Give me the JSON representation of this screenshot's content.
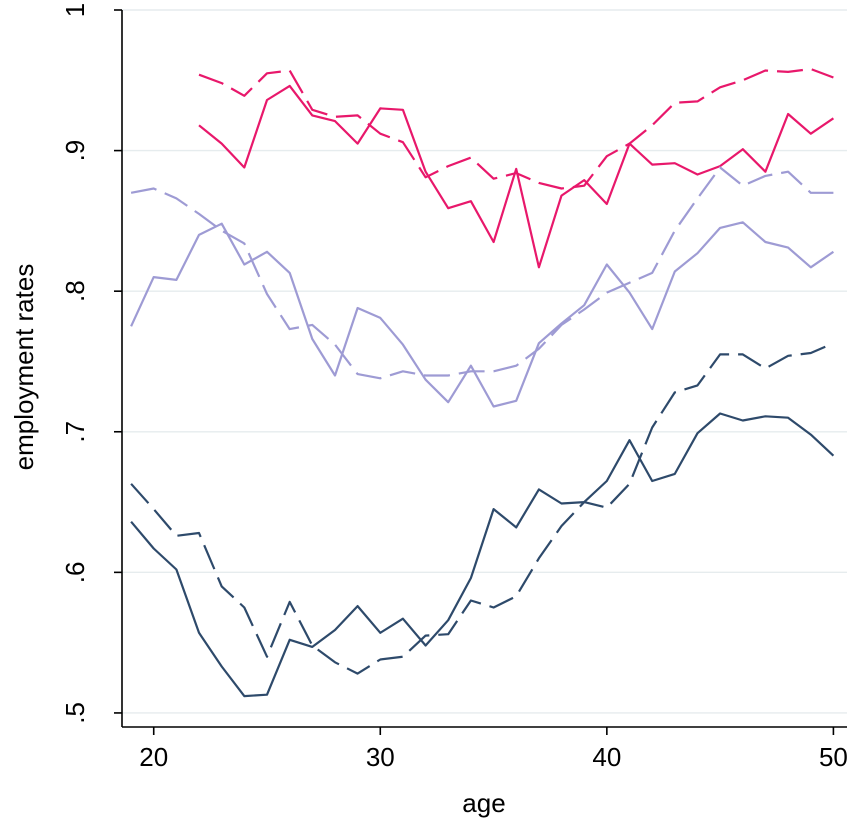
{
  "chart_data": {
    "type": "line",
    "xlabel": "age",
    "ylabel": "employment rates",
    "xlim": [
      18.6,
      50.6
    ],
    "ylim": [
      0.49,
      1.0
    ],
    "x_ticks": [
      20,
      30,
      40,
      50
    ],
    "x_tick_labels": [
      "20",
      "30",
      "40",
      "50"
    ],
    "y_ticks": [
      0.5,
      0.6,
      0.7,
      0.8,
      0.9,
      1
    ],
    "y_tick_labels": [
      ".5",
      ".6",
      ".7",
      ".8",
      ".9",
      "1"
    ],
    "grid": true,
    "legend": "none",
    "series": [
      {
        "color": "#e8186b",
        "style": "solid",
        "x": [
          22,
          23,
          24,
          25,
          26,
          27,
          28,
          29,
          30,
          31,
          32,
          33,
          34,
          35,
          36,
          37,
          38,
          39,
          40,
          41,
          42,
          43,
          44,
          45,
          46,
          47,
          48,
          49,
          50
        ],
        "y": [
          0.918,
          0.905,
          0.888,
          0.936,
          0.946,
          0.925,
          0.921,
          0.905,
          0.93,
          0.929,
          0.885,
          0.859,
          0.864,
          0.835,
          0.887,
          0.817,
          0.868,
          0.879,
          0.862,
          0.905,
          0.89,
          0.891,
          0.883,
          0.889,
          0.901,
          0.885,
          0.926,
          0.912,
          0.923
        ]
      },
      {
        "color": "#e8186b",
        "style": "dashed",
        "x": [
          22,
          23,
          24,
          25,
          26,
          27,
          28,
          29,
          30,
          31,
          32,
          33,
          34,
          35,
          36,
          37,
          38,
          39,
          40,
          41,
          42,
          43,
          44,
          45,
          46,
          47,
          48,
          49,
          50
        ],
        "y": [
          0.954,
          0.948,
          0.939,
          0.955,
          0.957,
          0.929,
          0.924,
          0.925,
          0.912,
          0.906,
          0.881,
          0.889,
          0.895,
          0.88,
          0.884,
          0.877,
          0.873,
          0.875,
          0.896,
          0.905,
          0.918,
          0.934,
          0.935,
          0.945,
          0.95,
          0.957,
          0.956,
          0.958,
          0.952
        ]
      },
      {
        "color": "#9e9bd4",
        "style": "solid",
        "x": [
          19,
          20,
          21,
          22,
          23,
          24,
          25,
          26,
          27,
          28,
          29,
          30,
          31,
          32,
          33,
          34,
          35,
          36,
          37,
          38,
          39,
          40,
          41,
          42,
          43,
          44,
          45,
          46,
          47,
          48,
          49,
          50
        ],
        "y": [
          0.775,
          0.81,
          0.808,
          0.84,
          0.848,
          0.819,
          0.828,
          0.813,
          0.766,
          0.74,
          0.788,
          0.781,
          0.762,
          0.737,
          0.721,
          0.747,
          0.718,
          0.722,
          0.763,
          0.777,
          0.79,
          0.819,
          0.799,
          0.773,
          0.814,
          0.827,
          0.845,
          0.849,
          0.835,
          0.831,
          0.817,
          0.828
        ]
      },
      {
        "color": "#9e9bd4",
        "style": "dashed",
        "x": [
          19,
          20,
          21,
          22,
          23,
          24,
          25,
          26,
          27,
          28,
          29,
          30,
          31,
          32,
          33,
          34,
          35,
          36,
          37,
          38,
          39,
          40,
          41,
          42,
          43,
          44,
          45,
          46,
          47,
          48,
          49,
          50
        ],
        "y": [
          0.87,
          0.873,
          0.866,
          0.855,
          0.843,
          0.834,
          0.798,
          0.773,
          0.776,
          0.762,
          0.741,
          0.738,
          0.743,
          0.74,
          0.74,
          0.743,
          0.743,
          0.747,
          0.759,
          0.776,
          0.787,
          0.799,
          0.806,
          0.813,
          0.843,
          0.866,
          0.888,
          0.875,
          0.882,
          0.885,
          0.87,
          0.87
        ]
      },
      {
        "color": "#2e4a6b",
        "style": "solid",
        "x": [
          19,
          20,
          21,
          22,
          23,
          24,
          25,
          26,
          27,
          28,
          29,
          30,
          31,
          32,
          33,
          34,
          35,
          36,
          37,
          38,
          39,
          40,
          41,
          42,
          43,
          44,
          45,
          46,
          47,
          48,
          49,
          50
        ],
        "y": [
          0.636,
          0.617,
          0.602,
          0.557,
          0.533,
          0.512,
          0.513,
          0.552,
          0.547,
          0.559,
          0.576,
          0.557,
          0.567,
          0.548,
          0.566,
          0.596,
          0.645,
          0.632,
          0.659,
          0.649,
          0.65,
          0.665,
          0.694,
          0.665,
          0.67,
          0.699,
          0.713,
          0.708,
          0.711,
          0.71,
          0.698,
          0.683
        ]
      },
      {
        "color": "#2e4a6b",
        "style": "dashed",
        "x": [
          19,
          20,
          21,
          22,
          23,
          24,
          25,
          26,
          27,
          28,
          29,
          30,
          31,
          32,
          33,
          34,
          35,
          36,
          37,
          38,
          39,
          40,
          41,
          42,
          43,
          44,
          45,
          46,
          47,
          48,
          49,
          50
        ],
        "y": [
          0.663,
          0.645,
          0.626,
          0.628,
          0.59,
          0.575,
          0.54,
          0.579,
          0.548,
          0.536,
          0.528,
          0.538,
          0.54,
          0.555,
          0.556,
          0.58,
          0.575,
          0.583,
          0.61,
          0.633,
          0.65,
          0.646,
          0.663,
          0.703,
          0.728,
          0.733,
          0.755,
          0.755,
          0.745,
          0.754,
          0.756,
          0.763
        ]
      }
    ]
  }
}
